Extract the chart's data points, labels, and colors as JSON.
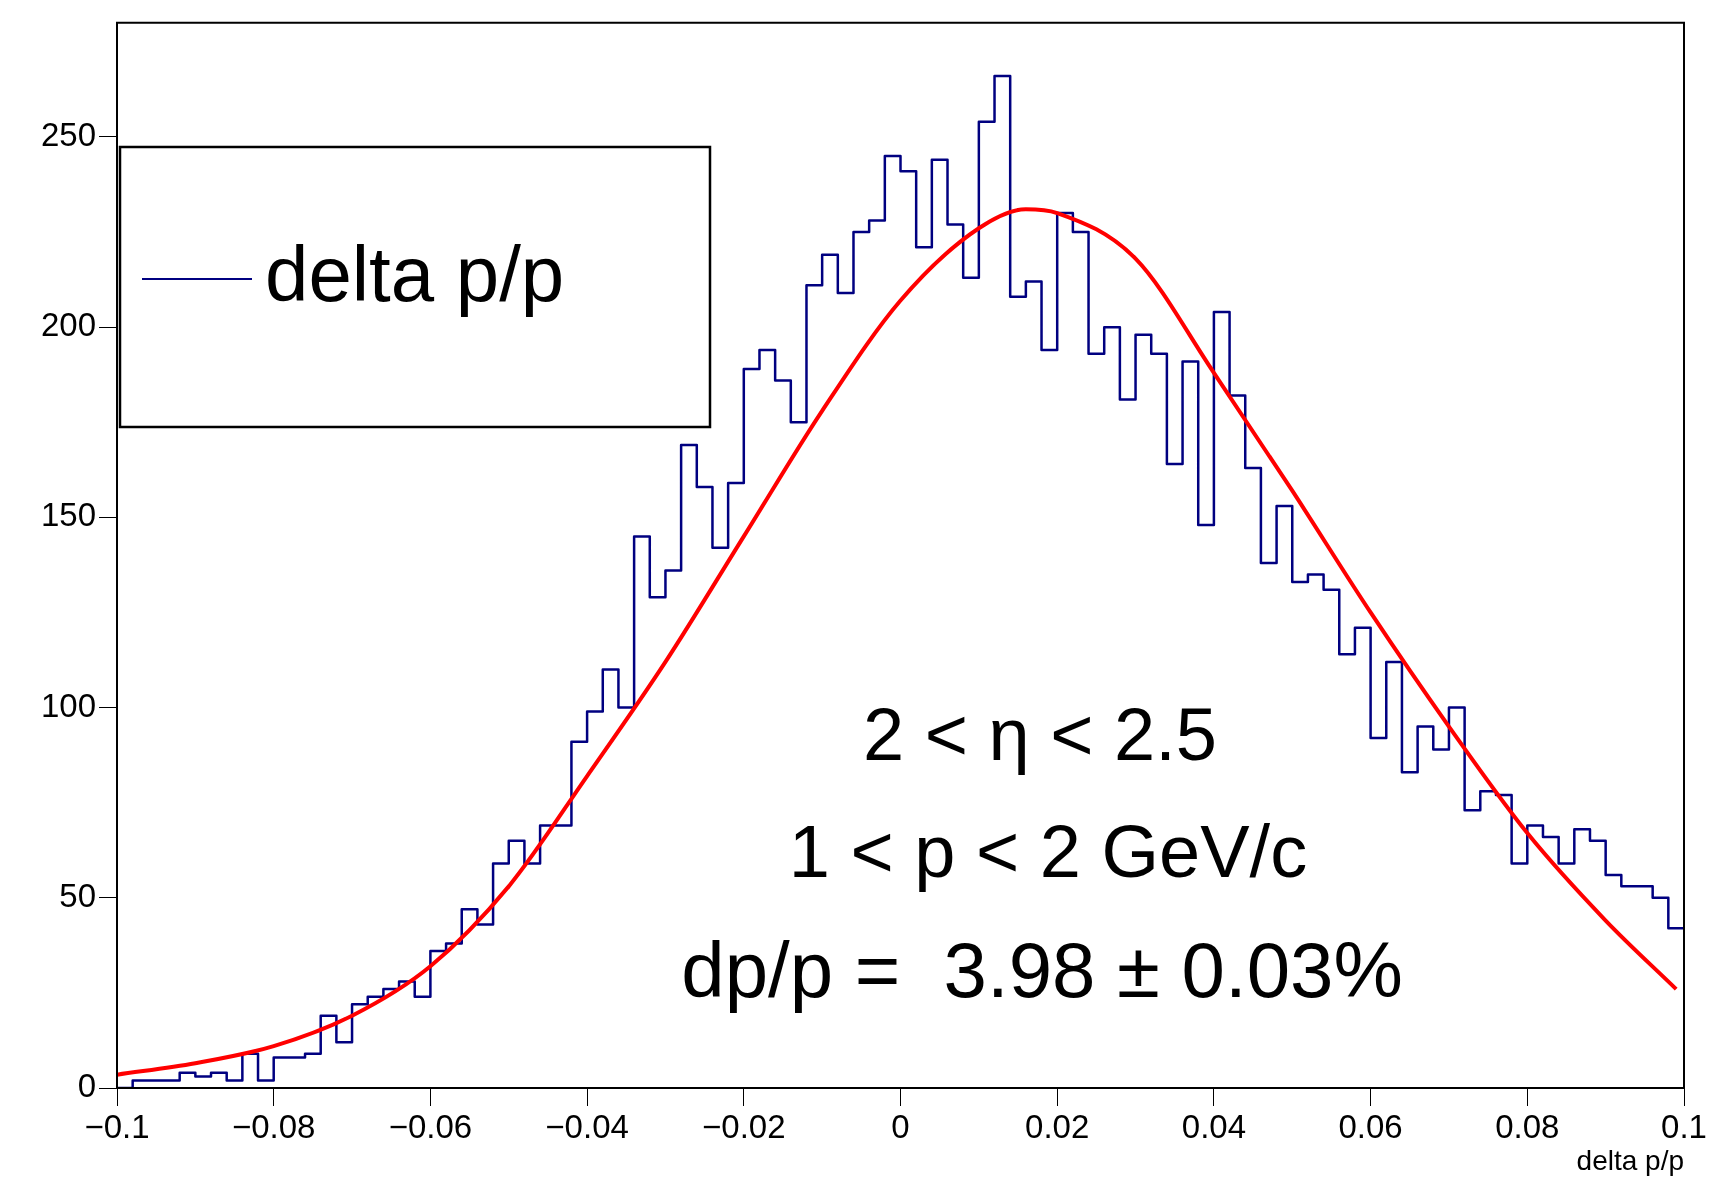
{
  "chart_data": {
    "type": "histogram",
    "xlabel": "delta p/p",
    "bins": [
      -0.1,
      -0.098,
      -0.096,
      -0.094,
      -0.092,
      -0.09,
      -0.088,
      -0.086,
      -0.084,
      -0.082,
      -0.08,
      -0.078,
      -0.076,
      -0.074,
      -0.072,
      -0.07,
      -0.068,
      -0.066,
      -0.064,
      -0.062,
      -0.06,
      -0.058,
      -0.056,
      -0.054,
      -0.052,
      -0.05,
      -0.048,
      -0.046,
      -0.044,
      -0.042,
      -0.04,
      -0.038,
      -0.036,
      -0.034,
      -0.032,
      -0.03,
      -0.028,
      -0.026,
      -0.024,
      -0.022,
      -0.02,
      -0.018,
      -0.016,
      -0.014,
      -0.012,
      -0.01,
      -0.008,
      -0.006,
      -0.004,
      -0.002,
      0,
      0.002,
      0.004,
      0.006,
      0.008,
      0.01,
      0.012,
      0.014,
      0.016,
      0.018,
      0.02,
      0.022,
      0.024,
      0.026,
      0.028,
      0.03,
      0.032,
      0.034,
      0.036,
      0.038,
      0.04,
      0.042,
      0.044,
      0.046,
      0.048,
      0.05,
      0.052,
      0.054,
      0.056,
      0.058,
      0.06,
      0.062,
      0.064,
      0.066,
      0.068,
      0.07,
      0.072,
      0.074,
      0.076,
      0.078,
      0.08,
      0.082,
      0.084,
      0.086,
      0.088,
      0.09,
      0.092,
      0.094,
      0.096,
      0.098,
      0.1
    ],
    "series": [
      {
        "name": "delta p/p",
        "color": "#000080",
        "values": [
          0,
          2,
          2,
          2,
          4,
          3,
          4,
          2,
          9,
          2,
          8,
          8,
          9,
          19,
          12,
          22,
          24,
          26,
          28,
          24,
          36,
          38,
          47,
          43,
          59,
          65,
          59,
          69,
          69,
          91,
          99,
          110,
          100,
          145,
          129,
          136,
          169,
          158,
          142,
          159,
          189,
          194,
          186,
          175,
          211,
          219,
          209,
          225,
          228,
          245,
          241,
          221,
          244,
          227,
          213,
          254,
          266,
          208,
          212,
          194,
          230,
          225,
          193,
          200,
          181,
          198,
          193,
          164,
          191,
          148,
          204,
          182,
          163,
          138,
          153,
          133,
          135,
          131,
          114,
          121,
          92,
          112,
          83,
          95,
          89,
          100,
          73,
          78,
          77,
          59,
          69,
          66,
          59,
          68,
          65,
          56,
          53,
          53,
          50,
          42
        ]
      },
      {
        "type": "line",
        "color": "#ff0000",
        "x": [
          -0.1,
          -0.09,
          -0.08,
          -0.07,
          -0.06,
          -0.05,
          -0.04,
          -0.03,
          -0.02,
          -0.01,
          0,
          0.01,
          0.016,
          0.02,
          0.03,
          0.04,
          0.05,
          0.06,
          0.07,
          0.08,
          0.09,
          0.099
        ],
        "values": [
          3.5,
          6.5,
          11,
          19,
          32,
          53,
          82,
          112,
          145,
          178,
          207,
          226,
          231,
          230,
          218,
          188,
          157,
          125,
          95,
          67,
          44,
          26
        ]
      }
    ],
    "xlim": [
      -0.1,
      0.1
    ],
    "ylim": [
      0,
      280
    ],
    "xticks": [
      {
        "value": -0.1,
        "label": "−0.1"
      },
      {
        "value": -0.08,
        "label": "−0.08"
      },
      {
        "value": -0.06,
        "label": "−0.06"
      },
      {
        "value": -0.04,
        "label": "−0.04"
      },
      {
        "value": -0.02,
        "label": "−0.02"
      },
      0,
      0.02,
      0.04,
      0.06,
      0.08,
      0.1
    ],
    "yticks": [
      0,
      50,
      100,
      150,
      200,
      250
    ],
    "legend": "top left",
    "grid": false,
    "annotations": [
      "2 < η < 2.5",
      "1 < p < 2 GeV/c",
      "dp/p =  3.98 ± 0.03%"
    ]
  }
}
